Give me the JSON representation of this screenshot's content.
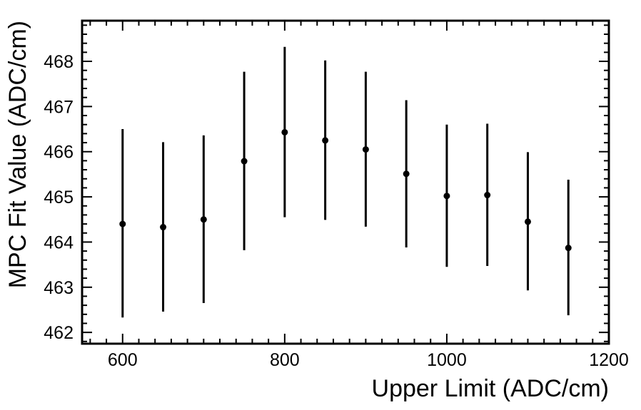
{
  "chart_data": {
    "type": "scatter",
    "title": "",
    "xlabel": "Upper Limit (ADC/cm)",
    "ylabel": "MPC Fit Value (ADC/cm)",
    "xlim": [
      550,
      1200
    ],
    "ylim": [
      461.75,
      468.9
    ],
    "xticks": [
      600,
      800,
      1000,
      1200
    ],
    "yticks": [
      462,
      463,
      464,
      465,
      466,
      467,
      468
    ],
    "xtick_labels": [
      "600",
      "800",
      "1000",
      "1200"
    ],
    "ytick_labels": [
      "462",
      "463",
      "464",
      "465",
      "466",
      "467",
      "468"
    ],
    "grid": false,
    "legend": false,
    "error_bars": true,
    "points": [
      {
        "x": 600,
        "y": 464.4,
        "lo": 462.33,
        "hi": 466.5
      },
      {
        "x": 650,
        "y": 464.33,
        "lo": 462.46,
        "hi": 466.21
      },
      {
        "x": 700,
        "y": 464.5,
        "lo": 462.65,
        "hi": 466.36
      },
      {
        "x": 750,
        "y": 465.79,
        "lo": 463.82,
        "hi": 467.77
      },
      {
        "x": 800,
        "y": 466.43,
        "lo": 464.55,
        "hi": 468.32
      },
      {
        "x": 850,
        "y": 466.25,
        "lo": 464.49,
        "hi": 468.02
      },
      {
        "x": 900,
        "y": 466.05,
        "lo": 464.34,
        "hi": 467.77
      },
      {
        "x": 950,
        "y": 465.51,
        "lo": 463.88,
        "hi": 467.14
      },
      {
        "x": 1000,
        "y": 465.02,
        "lo": 463.45,
        "hi": 466.6
      },
      {
        "x": 1050,
        "y": 465.04,
        "lo": 463.47,
        "hi": 466.62
      },
      {
        "x": 1100,
        "y": 464.45,
        "lo": 462.93,
        "hi": 465.99
      },
      {
        "x": 1150,
        "y": 463.87,
        "lo": 462.38,
        "hi": 465.38
      }
    ]
  }
}
